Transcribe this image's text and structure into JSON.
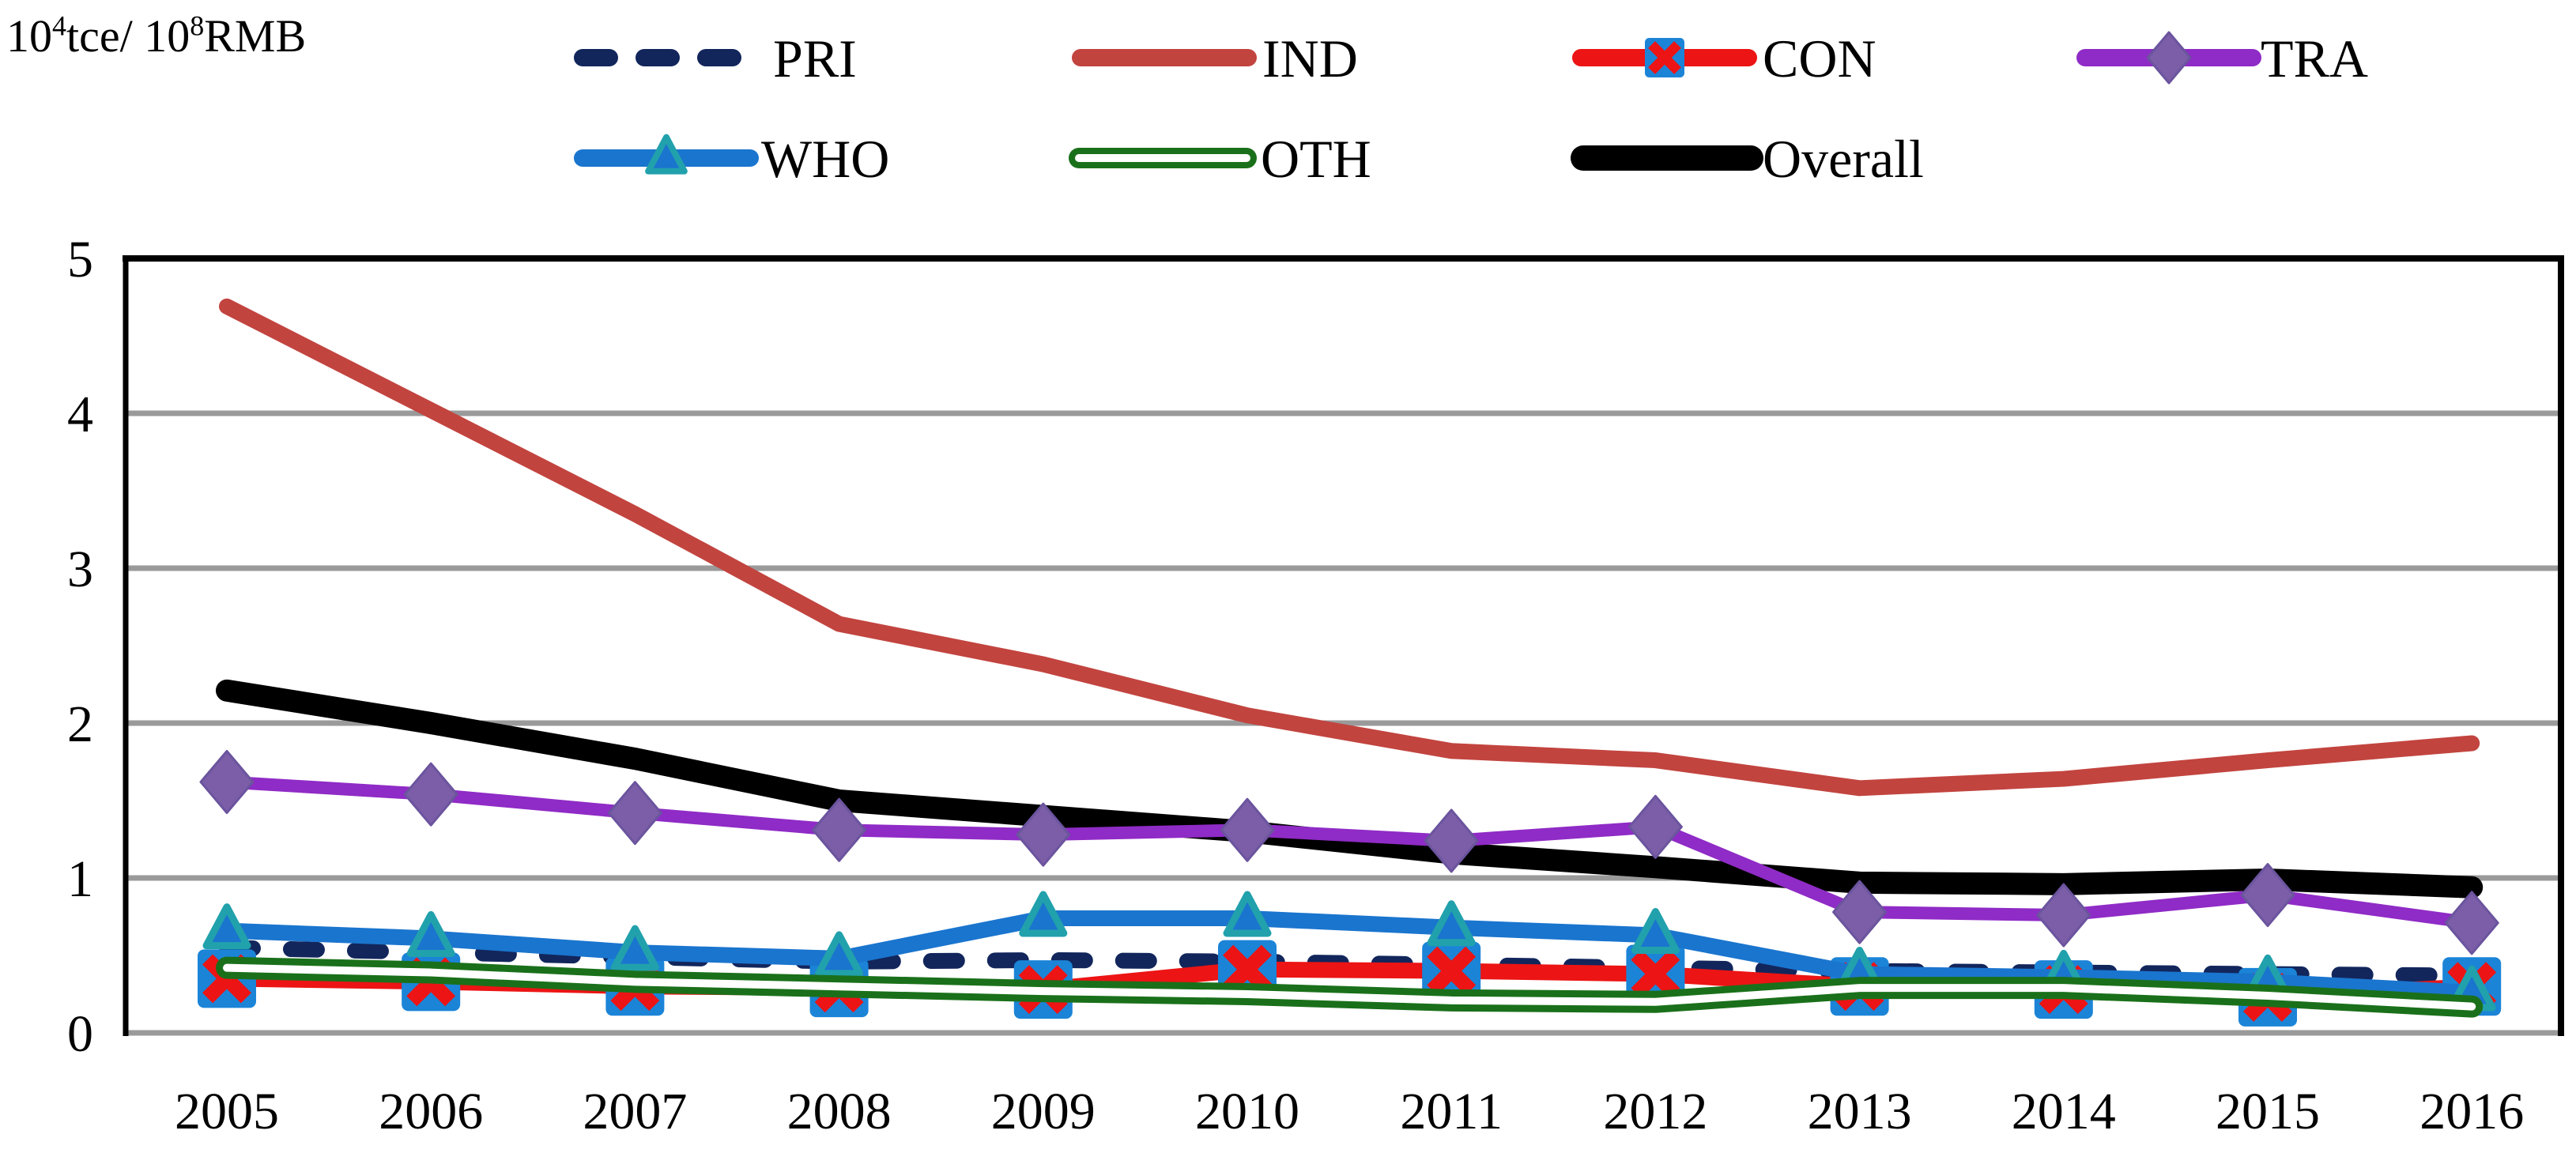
{
  "figure": {
    "background": "#FFFFFF"
  },
  "chart_data": {
    "type": "line",
    "title": "",
    "unit_label": {
      "base1": "10",
      "sup1": "4",
      "mid": "tce/ 10",
      "sup2": "8",
      "end": "RMB"
    },
    "x": [
      2005,
      2006,
      2007,
      2008,
      2009,
      2010,
      2011,
      2012,
      2013,
      2014,
      2015,
      2016
    ],
    "x_tick_labels": [
      "2005",
      "2006",
      "2007",
      "2008",
      "2009",
      "2010",
      "2011",
      "2012",
      "2013",
      "2014",
      "2015",
      "2016"
    ],
    "yticks": [
      "0",
      "1",
      "2",
      "3",
      "4",
      "5"
    ],
    "ylim": [
      0,
      5
    ],
    "grid": "horizontal",
    "gridline_color": "#9A9A9A",
    "axis_color": "#000000",
    "legend": {
      "position": "top",
      "rows": [
        [
          "PRI",
          "IND",
          "CON",
          "TRA"
        ],
        [
          "WHO",
          "OTH",
          "Overall"
        ]
      ]
    },
    "series": [
      {
        "name": "PRI",
        "line_color": "#12265C",
        "line_style": "dashed",
        "marker": "none",
        "values": [
          0.55,
          0.52,
          0.49,
          0.46,
          0.47,
          0.46,
          0.44,
          0.42,
          0.4,
          0.39,
          0.38,
          0.37
        ]
      },
      {
        "name": "IND",
        "line_color": "#C2443F",
        "line_style": "solid",
        "marker": "none",
        "values": [
          4.69,
          4.02,
          3.35,
          2.64,
          2.38,
          2.05,
          1.82,
          1.76,
          1.58,
          1.64,
          1.76,
          1.87
        ]
      },
      {
        "name": "CON",
        "line_color": "#EC1414",
        "line_style": "solid",
        "marker": "x-square",
        "marker_fill": "#1B84D7",
        "values": [
          0.35,
          0.33,
          0.3,
          0.29,
          0.28,
          0.41,
          0.4,
          0.38,
          0.3,
          0.28,
          0.23,
          0.3
        ]
      },
      {
        "name": "TRA",
        "line_color": "#8F2BC6",
        "line_style": "solid",
        "marker": "diamond",
        "marker_fill": "#7B5EA7",
        "marker_stroke": "#6B549E",
        "values": [
          1.62,
          1.54,
          1.42,
          1.31,
          1.28,
          1.31,
          1.24,
          1.33,
          0.78,
          0.76,
          0.89,
          0.71
        ]
      },
      {
        "name": "WHO",
        "line_color": "#1A75CE",
        "line_style": "solid",
        "marker": "triangle",
        "marker_fill": "#1A75CE",
        "marker_stroke": "#21A1AC",
        "values": [
          0.66,
          0.61,
          0.52,
          0.48,
          0.74,
          0.74,
          0.68,
          0.63,
          0.38,
          0.36,
          0.33,
          0.26
        ]
      },
      {
        "name": "OTH",
        "line_color": "#1A701A",
        "line_style": "hollow",
        "marker": "none",
        "values": [
          0.42,
          0.39,
          0.33,
          0.3,
          0.27,
          0.25,
          0.21,
          0.2,
          0.29,
          0.29,
          0.24,
          0.17
        ]
      },
      {
        "name": "Overall",
        "line_color": "#000000",
        "line_style": "solid-thick",
        "marker": "none",
        "values": [
          2.21,
          2.0,
          1.77,
          1.5,
          1.4,
          1.3,
          1.16,
          1.07,
          0.97,
          0.96,
          0.99,
          0.94
        ]
      }
    ]
  }
}
